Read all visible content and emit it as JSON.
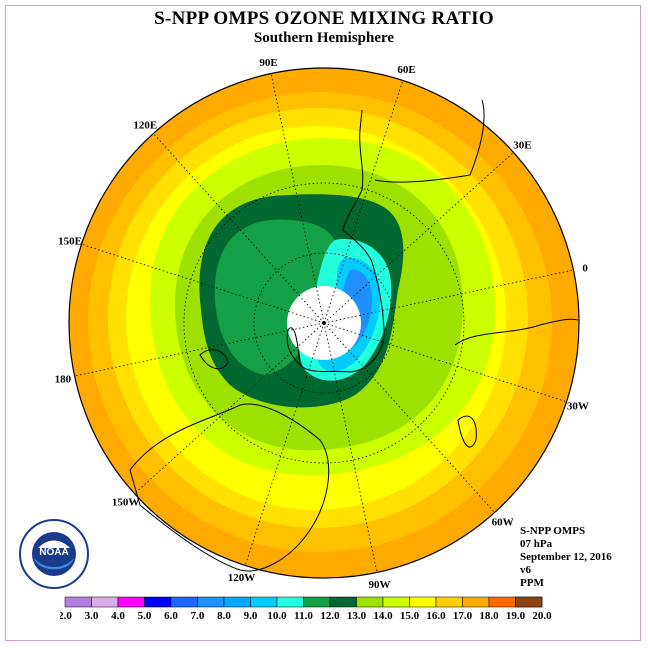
{
  "title": "S-NPP OMPS OZONE MIXING RATIO",
  "subtitle": "Southern Hemisphere",
  "info": {
    "instrument": "S-NPP OMPS",
    "level": "07 hPa",
    "date": "September 12, 2016",
    "version": "v6",
    "units": "PPM"
  },
  "logo": {
    "text": "NOAA",
    "icon": "noaa-logo-icon"
  },
  "longitude_labels": [
    {
      "text": "90W",
      "lon": -90
    },
    {
      "text": "60W",
      "lon": -60
    },
    {
      "text": "30W",
      "lon": -30
    },
    {
      "text": "0",
      "lon": 0
    },
    {
      "text": "30E",
      "lon": 30
    },
    {
      "text": "60E",
      "lon": 60
    },
    {
      "text": "90E",
      "lon": 90
    },
    {
      "text": "120E",
      "lon": 120
    },
    {
      "text": "150E",
      "lon": 150
    },
    {
      "text": "180",
      "lon": 180
    },
    {
      "text": "150W",
      "lon": -150
    },
    {
      "text": "120W",
      "lon": -120
    }
  ],
  "colorbar": {
    "labels": [
      "2.0",
      "3.0",
      "4.0",
      "5.0",
      "6.0",
      "7.0",
      "8.0",
      "9.0",
      "10.0",
      "11.0",
      "12.0",
      "13.0",
      "14.0",
      "15.0",
      "16.0",
      "17.0",
      "18.0",
      "19.0",
      "20.0"
    ],
    "colors": [
      "#b37fe0",
      "#d9aee8",
      "#ff00ff",
      "#0000ff",
      "#1e64ff",
      "#1e90ff",
      "#00aaff",
      "#00ccff",
      "#22ffdd",
      "#14a046",
      "#006830",
      "#9ee000",
      "#ccff00",
      "#ffff00",
      "#ffd000",
      "#ffaa00",
      "#ff6a00",
      "#ff0000",
      "#8b4513"
    ]
  },
  "colors": {
    "polar_gap": "#ffffff",
    "graticule": "#000000",
    "coast": "#000000"
  }
}
